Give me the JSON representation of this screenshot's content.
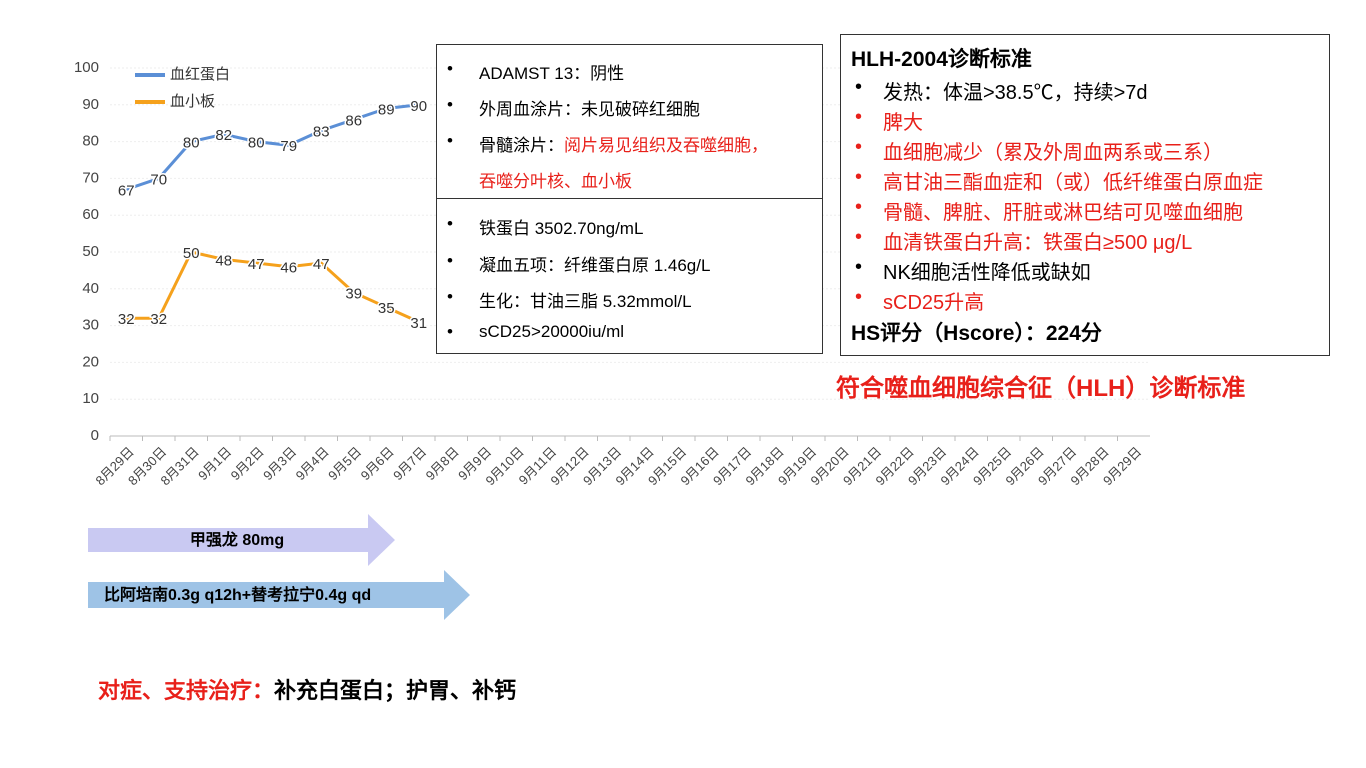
{
  "chart_data": {
    "type": "line",
    "categories": [
      "8月29日",
      "8月30日",
      "8月31日",
      "9月1日",
      "9月2日",
      "9月3日",
      "9月4日",
      "9月5日",
      "9月6日",
      "9月7日",
      "9月8日",
      "9月9日",
      "9月10日",
      "9月11日",
      "9月12日",
      "9月13日",
      "9月14日",
      "9月15日",
      "9月16日",
      "9月17日",
      "9月18日",
      "9月19日",
      "9月20日",
      "9月21日",
      "9月22日",
      "9月23日",
      "9月24日",
      "9月25日",
      "9月26日",
      "9月27日",
      "9月28日",
      "9月29日"
    ],
    "series": [
      {
        "name": "血红蛋白",
        "color": "#5b8fd6",
        "values": [
          67,
          70,
          80,
          82,
          80,
          79,
          83,
          86,
          89,
          90,
          null,
          null,
          null,
          null,
          null,
          null,
          null,
          null,
          null,
          null,
          null,
          null,
          null,
          null,
          null,
          null,
          null,
          null,
          null,
          null,
          null,
          null
        ]
      },
      {
        "name": "血小板",
        "color": "#f5a11c",
        "values": [
          32,
          32,
          50,
          48,
          47,
          46,
          47,
          39,
          35,
          31,
          null,
          null,
          null,
          null,
          null,
          null,
          null,
          null,
          null,
          null,
          null,
          null,
          null,
          null,
          null,
          null,
          null,
          null,
          null,
          null,
          null,
          null
        ]
      }
    ],
    "ylim": [
      0,
      100
    ],
    "yticks": [
      0,
      10,
      20,
      30,
      40,
      50,
      60,
      70,
      80,
      90,
      100
    ],
    "grid": true,
    "legend": "top-left"
  },
  "lab_box_1": {
    "items": [
      {
        "label": "ADAMST 13：阴性"
      },
      {
        "label": "外周血涂片：未见破碎红细胞"
      },
      {
        "label": "骨髓涂片：",
        "highlight": "阅片易见组织及吞噬细胞，",
        "continuation": "吞噬分叶核、血小板"
      }
    ]
  },
  "lab_box_2": {
    "items": [
      "铁蛋白 3502.70ng/mL",
      "凝血五项：纤维蛋白原 1.46g/L",
      "生化：甘油三脂 5.32mmol/L",
      "sCD25>20000iu/ml"
    ]
  },
  "criteria": {
    "title": "HLH-2004诊断标准",
    "items": [
      {
        "text": "发热：体温>38.5℃，持续>7d",
        "met": false
      },
      {
        "text": "脾大",
        "met": true
      },
      {
        "text": "血细胞减少（累及外周血两系或三系）",
        "met": true
      },
      {
        "text": "高甘油三酯血症和（或）低纤维蛋白原血症",
        "met": true
      },
      {
        "text": "骨髓、脾脏、肝脏或淋巴结可见噬血细胞",
        "met": true
      },
      {
        "text": "血清铁蛋白升高：铁蛋白≥500 μg/L",
        "met": true
      },
      {
        "text": "NK细胞活性降低或缺如",
        "met": false
      },
      {
        "text": "sCD25升高",
        "met": true
      }
    ],
    "hscore": "HS评分（Hscore）：224分"
  },
  "conclusion": "符合噬血细胞综合征（HLH）诊断标准",
  "arrows": [
    "甲强龙 80mg",
    "比阿培南0.3g q12h+替考拉宁0.4g qd"
  ],
  "treatment": {
    "label": "对症、支持治疗：",
    "text": "补充白蛋白；护胃、补钙"
  }
}
